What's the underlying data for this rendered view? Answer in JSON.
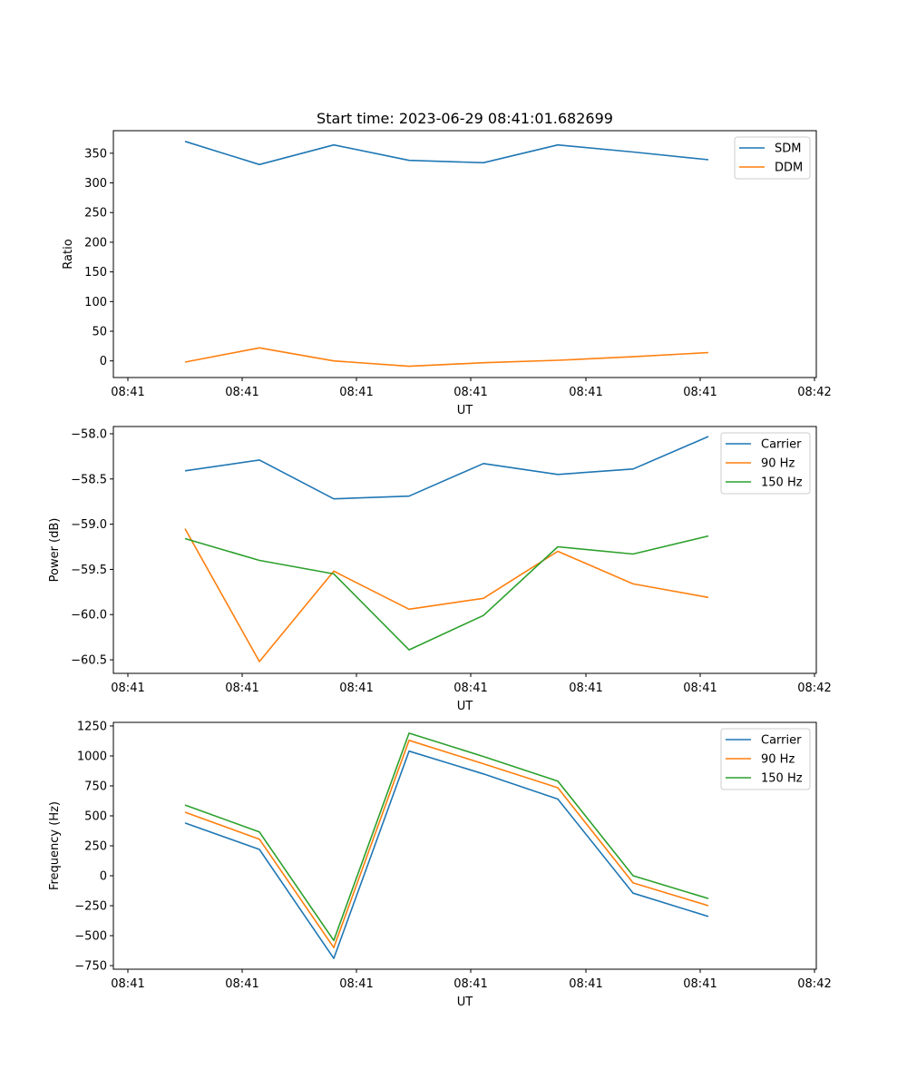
{
  "chart_data": [
    {
      "type": "line",
      "title": "Start time: 2023-06-29 08:41:01.682699",
      "xlabel": "UT",
      "ylabel": "Ratio",
      "x_tick_labels": [
        "08:41",
        "08:41",
        "08:41",
        "08:41",
        "08:41",
        "08:41",
        "08:42"
      ],
      "y_ticks": [
        0,
        50,
        100,
        150,
        200,
        250,
        300,
        350
      ],
      "ylim": [
        -28,
        388
      ],
      "legend_position": "top-right",
      "series": [
        {
          "name": "SDM",
          "color": "#1f77b4",
          "values": [
            370,
            331,
            364,
            338,
            334,
            364,
            352,
            339
          ]
        },
        {
          "name": "DDM",
          "color": "#ff7f0e",
          "values": [
            -2,
            22,
            0,
            -9,
            -3,
            1,
            7,
            14
          ]
        }
      ]
    },
    {
      "type": "line",
      "title": "",
      "xlabel": "UT",
      "ylabel": "Power (dB)",
      "x_tick_labels": [
        "08:41",
        "08:41",
        "08:41",
        "08:41",
        "08:41",
        "08:41",
        "08:42"
      ],
      "y_ticks": [
        -60.5,
        -60.0,
        -59.5,
        -59.0,
        -58.5,
        -58.0
      ],
      "ylim": [
        -60.65,
        -57.92
      ],
      "legend_position": "top-right",
      "series": [
        {
          "name": "Carrier",
          "color": "#1f77b4",
          "values": [
            -58.41,
            -58.29,
            -58.72,
            -58.69,
            -58.33,
            -58.45,
            -58.39,
            -58.03
          ]
        },
        {
          "name": "90 Hz",
          "color": "#ff7f0e",
          "values": [
            -59.05,
            -60.52,
            -59.52,
            -59.94,
            -59.82,
            -59.3,
            -59.66,
            -59.81
          ]
        },
        {
          "name": "150 Hz",
          "color": "#2ca02c",
          "values": [
            -59.16,
            -59.4,
            -59.55,
            -60.39,
            -60.01,
            -59.25,
            -59.33,
            -59.13
          ]
        }
      ]
    },
    {
      "type": "line",
      "title": "",
      "xlabel": "UT",
      "ylabel": "Frequency (Hz)",
      "x_tick_labels": [
        "08:41",
        "08:41",
        "08:41",
        "08:41",
        "08:41",
        "08:41",
        "08:42"
      ],
      "y_ticks": [
        -750,
        -500,
        -250,
        0,
        250,
        500,
        750,
        1000,
        1250
      ],
      "ylim": [
        -780,
        1280
      ],
      "legend_position": "top-right",
      "series": [
        {
          "name": "Carrier",
          "color": "#1f77b4",
          "values": [
            440,
            220,
            -690,
            1040,
            850,
            640,
            -145,
            -340
          ]
        },
        {
          "name": "90 Hz",
          "color": "#ff7f0e",
          "values": [
            530,
            305,
            -600,
            1130,
            935,
            735,
            -60,
            -250
          ]
        },
        {
          "name": "150 Hz",
          "color": "#2ca02c",
          "values": [
            590,
            365,
            -540,
            1190,
            995,
            790,
            0,
            -190
          ]
        }
      ]
    }
  ]
}
